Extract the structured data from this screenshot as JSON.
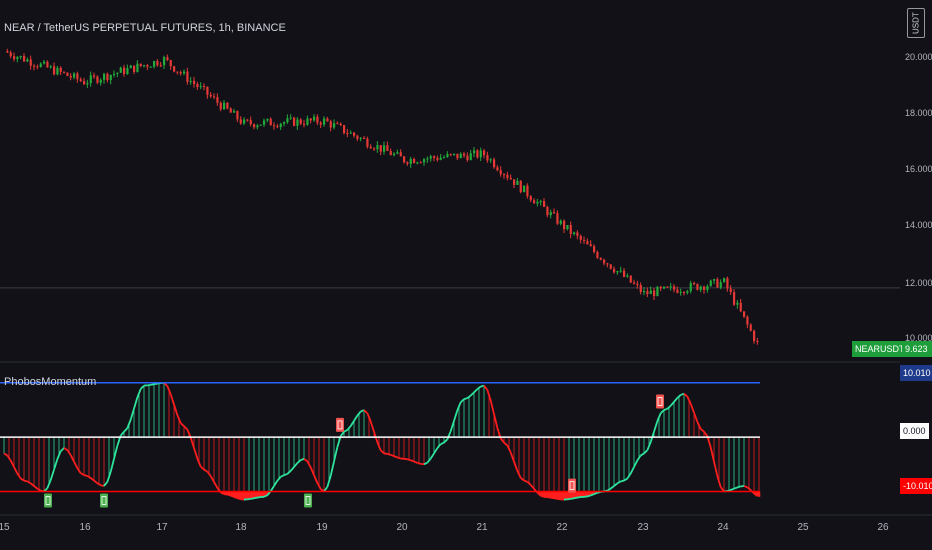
{
  "header": {
    "symbol_title": "NEAR / TetherUS PERPETUAL FUTURES, 1h, BINANCE",
    "currency_badge": "USDT"
  },
  "indicator": {
    "name": "PhobosMomentum"
  },
  "price_axis": {
    "labels": [
      "20.000",
      "18.000",
      "16.000",
      "14.000",
      "12.000",
      "10.000"
    ]
  },
  "last_price": {
    "symbol": "NEARUSDTPERP",
    "value": "9.623"
  },
  "indicator_axis": {
    "upper": "10.010",
    "zero": "0.000",
    "lower": "-10.010"
  },
  "time_axis": {
    "labels": [
      "15",
      "16",
      "17",
      "18",
      "19",
      "20",
      "21",
      "22",
      "23",
      "24",
      "25",
      "26"
    ]
  },
  "colors": {
    "background": "#121118",
    "up": "#26a69a",
    "candle_up": "#22ab3a",
    "candle_down": "#e53935",
    "momentum_up": "#2ee59d",
    "momentum_down": "#ff1e1e",
    "upper_line": "#2962ff",
    "lower_line": "#ff0000",
    "zero_line": "#ffffff",
    "last_price_bg": "#1e9e3a"
  },
  "chart_data": [
    {
      "type": "candlestick",
      "title": "NEAR / TetherUS PERPETUAL FUTURES, 1h, BINANCE",
      "x": [
        "15",
        "16",
        "17",
        "18",
        "19",
        "20",
        "21",
        "22",
        "23",
        "24",
        "24.45"
      ],
      "close": [
        20.3,
        19.2,
        20.0,
        17.7,
        17.8,
        16.4,
        16.6,
        14.0,
        11.6,
        12.0,
        9.62
      ],
      "ylim": [
        9.5,
        20.7
      ],
      "last": 9.623,
      "ref_line": 11.8
    },
    {
      "type": "area",
      "title": "PhobosMomentum",
      "x": [
        15.0,
        15.25,
        15.5,
        15.75,
        16.0,
        16.25,
        16.5,
        16.75,
        17.0,
        17.25,
        17.5,
        17.75,
        18.0,
        18.25,
        18.5,
        18.75,
        19.0,
        19.25,
        19.5,
        19.75,
        20.0,
        20.25,
        20.5,
        20.75,
        21.0,
        21.25,
        21.5,
        21.75,
        22.0,
        22.25,
        22.5,
        22.75,
        23.0,
        23.25,
        23.5,
        23.75,
        24.0,
        24.25,
        24.45
      ],
      "values": [
        -3,
        -8,
        -10,
        -2,
        -7,
        -9,
        1,
        9.5,
        10,
        2,
        -6,
        -10.5,
        -11.5,
        -11,
        -7,
        -4,
        -10,
        1,
        5,
        -3,
        -4,
        -5,
        -1,
        7,
        9.5,
        -1,
        -8,
        -11,
        -11.5,
        -11,
        -10,
        -8,
        -3,
        5,
        8,
        1,
        -10,
        -9,
        -11
      ],
      "ylim": [
        -12.5,
        12
      ],
      "upper": 10.01,
      "zero": 0,
      "lower": -10.01,
      "signals": [
        {
          "x": 15.55,
          "kind": "buy"
        },
        {
          "x": 16.25,
          "kind": "buy"
        },
        {
          "x": 18.8,
          "kind": "buy"
        },
        {
          "x": 19.2,
          "kind": "sell"
        },
        {
          "x": 22.1,
          "kind": "sell"
        },
        {
          "x": 23.2,
          "kind": "sell"
        }
      ]
    }
  ]
}
